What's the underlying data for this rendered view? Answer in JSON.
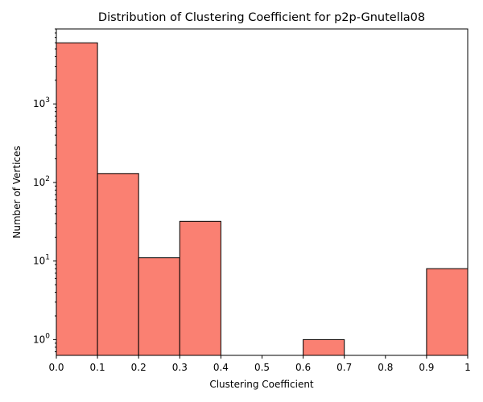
{
  "chart_data": {
    "type": "bar",
    "title": "Distribution of Clustering Coefficient for p2p-Gnutella08",
    "xlabel": "Clustering Coefficient",
    "ylabel": "Number of Vertices",
    "x_bin_edges": [
      0.0,
      0.1,
      0.2,
      0.3,
      0.4,
      0.5,
      0.6,
      0.7,
      0.8,
      0.9,
      1.0
    ],
    "values": [
      5990,
      130,
      11,
      32,
      0,
      0,
      1,
      0,
      0,
      8
    ],
    "x_ticks": [
      0.0,
      0.1,
      0.2,
      0.3,
      0.4,
      0.5,
      0.6,
      0.7,
      0.8,
      0.9,
      1.0
    ],
    "x_tick_labels": [
      "0.0",
      "0.1",
      "0.2",
      "0.3",
      "0.4",
      "0.5",
      "0.6",
      "0.7",
      "0.8",
      "0.9",
      "1"
    ],
    "xlim": [
      0.0,
      1.0
    ],
    "ylim": [
      0.63,
      9000
    ],
    "y_scale": "log",
    "y_ticks": [
      {
        "value": 1,
        "base": "10",
        "exp": "0"
      },
      {
        "value": 10,
        "base": "10",
        "exp": "1"
      },
      {
        "value": 100,
        "base": "10",
        "exp": "2"
      },
      {
        "value": 1000,
        "base": "10",
        "exp": "3"
      }
    ],
    "grid": false,
    "bar_color": "#fa8072",
    "edge_color": "#000000"
  }
}
